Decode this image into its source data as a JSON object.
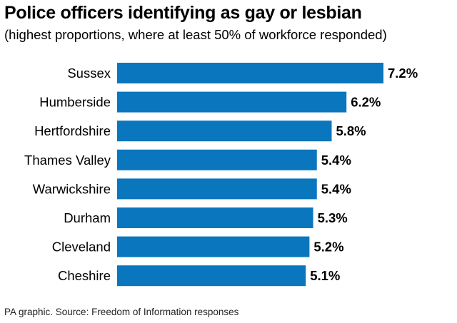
{
  "title": "Police officers identifying as gay or lesbian",
  "subtitle": "(highest proportions, where at least 50% of workforce responded)",
  "source": "PA graphic. Source: Freedom of Information responses",
  "colors": {
    "bar": "#0a76be",
    "text": "#000000"
  },
  "chart_data": {
    "type": "bar",
    "orientation": "horizontal",
    "categories": [
      "Sussex",
      "Humberside",
      "Hertfordshire",
      "Thames Valley",
      "Warwickshire",
      "Durham",
      "Cleveland",
      "Cheshire"
    ],
    "values": [
      7.2,
      6.2,
      5.8,
      5.4,
      5.4,
      5.3,
      5.2,
      5.1
    ],
    "value_labels": [
      "7.2%",
      "6.2%",
      "5.8%",
      "5.4%",
      "5.4%",
      "5.3%",
      "5.2%",
      "5.1%"
    ],
    "unit": "%",
    "xlim": [
      0,
      7.2
    ],
    "grid": false,
    "legend": "none"
  }
}
